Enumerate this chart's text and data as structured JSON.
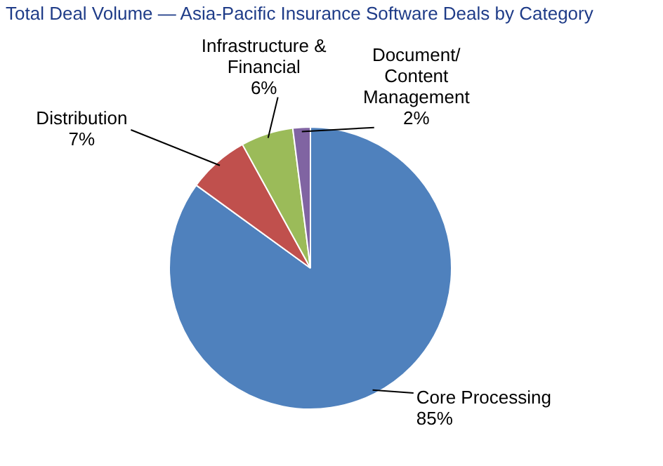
{
  "chart_data": {
    "type": "pie",
    "title": "Total Deal Volume — Asia-Pacific Insurance Software Deals by Category",
    "categories": [
      "Core Processing",
      "Distribution",
      "Infrastructure & Financial",
      "Document/ Content Management"
    ],
    "values": [
      85,
      7,
      6,
      2
    ],
    "value_labels": [
      "85%",
      "7%",
      "6%",
      "2%"
    ],
    "colors": [
      "#4f81bd",
      "#c0504d",
      "#9bbb59",
      "#8064a2"
    ],
    "legend": false
  }
}
